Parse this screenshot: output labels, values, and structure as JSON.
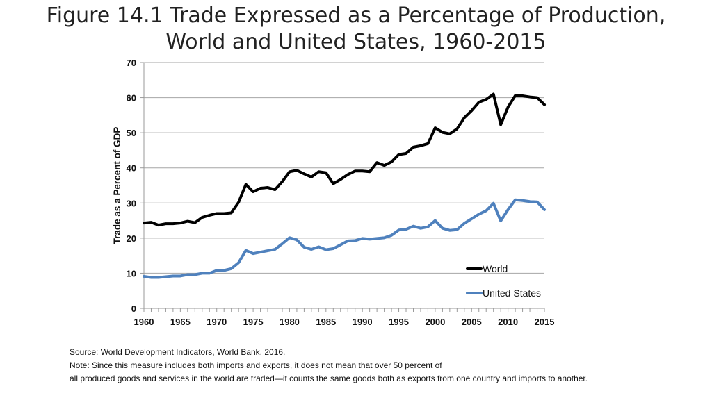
{
  "title_lines": [
    "Figure 14.1 Trade Expressed as a Percentage of Production,",
    "World and United States, 1960-2015"
  ],
  "notes": [
    "Source: World Development Indicators, World Bank, 2016.",
    "Note: Since this measure includes both imports and exports, it does not mean that over 50 percent of",
    "all produced goods and services in the world are traded—it counts the same goods both as exports from one country and imports to another."
  ],
  "chart_data": {
    "type": "line",
    "title": "",
    "xlabel": "",
    "ylabel": "Trade as a Percent of GDP",
    "xlim": [
      1960,
      2015
    ],
    "ylim": [
      0,
      70
    ],
    "xticks": [
      1960,
      1965,
      1970,
      1975,
      1980,
      1985,
      1990,
      1995,
      2000,
      2005,
      2010,
      2015
    ],
    "yticks": [
      0,
      10,
      20,
      30,
      40,
      50,
      60,
      70
    ],
    "grid": "horizontal",
    "legend": "bottom-right",
    "x": [
      1960,
      1961,
      1962,
      1963,
      1964,
      1965,
      1966,
      1967,
      1968,
      1969,
      1970,
      1971,
      1972,
      1973,
      1974,
      1975,
      1976,
      1977,
      1978,
      1979,
      1980,
      1981,
      1982,
      1983,
      1984,
      1985,
      1986,
      1987,
      1988,
      1989,
      1990,
      1991,
      1992,
      1993,
      1994,
      1995,
      1996,
      1997,
      1998,
      1999,
      2000,
      2001,
      2002,
      2003,
      2004,
      2005,
      2006,
      2007,
      2008,
      2009,
      2010,
      2011,
      2012,
      2013,
      2014,
      2015
    ],
    "series": [
      {
        "name": "World",
        "color": "#000000",
        "values": [
          24.3,
          24.5,
          23.7,
          24.1,
          24.1,
          24.3,
          24.8,
          24.4,
          25.9,
          26.5,
          27.0,
          27.0,
          27.2,
          30.2,
          35.3,
          33.2,
          34.2,
          34.4,
          33.8,
          36.1,
          38.9,
          39.3,
          38.3,
          37.4,
          38.9,
          38.6,
          35.5,
          36.7,
          38.1,
          39.1,
          39.1,
          38.9,
          41.5,
          40.7,
          41.7,
          43.8,
          44.1,
          45.9,
          46.3,
          46.9,
          51.4,
          50.1,
          49.7,
          51.1,
          54.3,
          56.3,
          58.7,
          59.5,
          61.0,
          52.3,
          57.3,
          60.6,
          60.5,
          60.2,
          60.0,
          58.0
        ]
      },
      {
        "name": "United States",
        "color": "#4f81bd",
        "values": [
          9.1,
          8.8,
          8.8,
          9.0,
          9.2,
          9.2,
          9.6,
          9.6,
          10.0,
          10.0,
          10.8,
          10.8,
          11.3,
          13.0,
          16.5,
          15.6,
          16.0,
          16.4,
          16.8,
          18.4,
          20.1,
          19.5,
          17.4,
          16.8,
          17.5,
          16.7,
          17.0,
          18.1,
          19.2,
          19.3,
          19.9,
          19.7,
          19.9,
          20.1,
          20.8,
          22.3,
          22.5,
          23.4,
          22.8,
          23.2,
          25.0,
          22.8,
          22.2,
          22.4,
          24.2,
          25.5,
          26.8,
          27.8,
          29.9,
          24.9,
          28.1,
          30.9,
          30.7,
          30.4,
          30.3,
          28.1
        ]
      }
    ]
  }
}
